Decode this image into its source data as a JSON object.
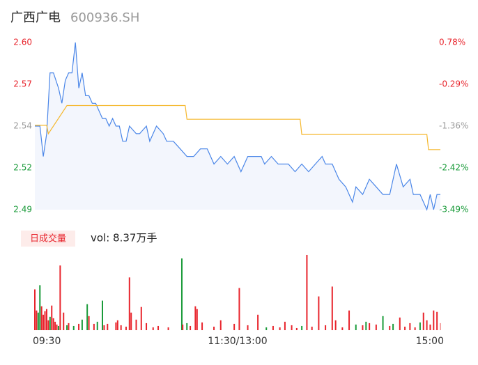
{
  "chart_data": {
    "type": "line",
    "title": "广西广电",
    "subtitle": "600936.SH",
    "xlim": [
      0,
      240
    ],
    "xticks": [
      {
        "value": 0,
        "label": "09:30"
      },
      {
        "value": 120,
        "label": "11:30/13:00"
      },
      {
        "value": 240,
        "label": "15:00"
      }
    ],
    "ylim": [
      2.49,
      2.6
    ],
    "yticks": [
      {
        "value": 2.6,
        "label": "2.60",
        "color": "#e8242c"
      },
      {
        "value": 2.5725,
        "label": "2.57",
        "color": "#e8242c"
      },
      {
        "value": 2.545,
        "label": "2.54",
        "color": "#999999"
      },
      {
        "value": 2.5175,
        "label": "2.52",
        "color": "#1a9b3a"
      },
      {
        "value": 2.49,
        "label": "2.49",
        "color": "#1a9b3a"
      }
    ],
    "y2lim": [
      -3.49,
      0.78
    ],
    "y2ticks": [
      {
        "value": 0.78,
        "label": "0.78%",
        "color": "#e8242c"
      },
      {
        "value": -0.2875,
        "label": "-0.29%",
        "color": "#e8242c"
      },
      {
        "value": -1.355,
        "label": "-1.36%",
        "color": "#999999"
      },
      {
        "value": -2.4225,
        "label": "-2.42%",
        "color": "#1a9b3a"
      },
      {
        "value": -3.49,
        "label": "-3.49%",
        "color": "#1a9b3a"
      }
    ],
    "series": [
      {
        "color": "#4a86e8",
        "x": [
          0,
          3,
          5,
          7,
          9,
          11,
          14,
          16,
          18,
          20,
          22,
          24,
          26,
          28,
          30,
          32,
          34,
          36,
          40,
          42,
          44,
          46,
          48,
          50,
          52,
          54,
          56,
          60,
          62,
          66,
          68,
          72,
          76,
          78,
          82,
          86,
          90,
          94,
          98,
          102,
          106,
          110,
          114,
          118,
          122,
          126,
          130,
          134,
          136,
          140,
          144,
          148,
          150,
          154,
          158,
          162,
          166,
          170,
          172,
          176,
          180,
          184,
          188,
          190,
          194,
          198,
          202,
          206,
          210,
          214,
          218,
          222,
          224,
          228,
          232,
          234,
          236,
          238,
          240
        ],
        "values": [
          2.545,
          2.545,
          2.525,
          2.54,
          2.58,
          2.58,
          2.57,
          2.56,
          2.575,
          2.58,
          2.58,
          2.6,
          2.57,
          2.58,
          2.565,
          2.565,
          2.56,
          2.56,
          2.55,
          2.55,
          2.545,
          2.55,
          2.545,
          2.545,
          2.535,
          2.535,
          2.545,
          2.54,
          2.54,
          2.545,
          2.535,
          2.545,
          2.54,
          2.535,
          2.535,
          2.53,
          2.525,
          2.525,
          2.53,
          2.53,
          2.52,
          2.525,
          2.52,
          2.525,
          2.515,
          2.525,
          2.525,
          2.525,
          2.52,
          2.525,
          2.52,
          2.52,
          2.52,
          2.515,
          2.52,
          2.515,
          2.52,
          2.525,
          2.52,
          2.52,
          2.51,
          2.505,
          2.495,
          2.505,
          2.5,
          2.51,
          2.505,
          2.5,
          2.5,
          2.52,
          2.505,
          2.51,
          2.5,
          2.5,
          2.49,
          2.5,
          2.49,
          2.5,
          2.5
        ]
      },
      {
        "color": "#f5b82e",
        "x": [
          0,
          7,
          8,
          19,
          20,
          89,
          90,
          157,
          158,
          232,
          233,
          240
        ],
        "values": [
          2.5455,
          2.5455,
          2.54,
          2.5585,
          2.5585,
          2.5585,
          2.5495,
          2.5495,
          2.5395,
          2.5395,
          2.5295,
          2.5295
        ]
      }
    ],
    "volume": {
      "button": "日成交量",
      "label": "vol: 8.37万手",
      "ylim": [
        0,
        105
      ],
      "x": [
        0,
        1,
        2,
        3,
        4,
        5,
        6,
        7,
        8,
        9,
        10,
        11,
        12,
        13,
        14,
        15,
        17,
        19,
        20,
        23,
        26,
        28,
        31,
        32,
        35,
        37,
        40,
        41,
        43,
        48,
        49,
        51,
        54,
        56,
        57,
        60,
        63,
        66,
        70,
        73,
        79,
        87,
        87.5,
        90,
        92,
        95,
        96,
        99,
        106,
        110,
        118,
        121,
        126,
        132,
        137,
        141,
        145,
        148,
        152,
        155,
        158,
        161,
        164,
        168,
        172,
        176,
        178,
        182,
        186,
        190,
        194,
        196,
        198,
        202,
        206,
        210,
        212,
        216,
        219,
        222,
        225,
        228,
        230,
        232,
        234,
        236,
        238,
        240
      ],
      "values": [
        58,
        28,
        25,
        64,
        34,
        22,
        27,
        30,
        14,
        19,
        35,
        17,
        12,
        8,
        6,
        92,
        25,
        7,
        10,
        6,
        9,
        15,
        37,
        20,
        9,
        12,
        42,
        7,
        9,
        11,
        14,
        7,
        5,
        75,
        25,
        15,
        33,
        10,
        4,
        6,
        4,
        102,
        8,
        10,
        6,
        34,
        30,
        11,
        5,
        14,
        9,
        60,
        7,
        22,
        4,
        6,
        4,
        12,
        7,
        3,
        6,
        107,
        5,
        48,
        7,
        62,
        14,
        4,
        28,
        8,
        7,
        12,
        10,
        8,
        20,
        6,
        9,
        18,
        5,
        10,
        4,
        11,
        25,
        14,
        8,
        28,
        26,
        10
      ],
      "colors": [
        "#e8242c",
        "#e8242c",
        "#1a9b3a",
        "#1a9b3a",
        "#e8242c",
        "#e8242c",
        "#e8242c",
        "#e8242c",
        "#e8242c",
        "#1a9b3a",
        "#e8242c",
        "#e8242c",
        "#e8242c",
        "#e8242c",
        "#1a9b3a",
        "#e8242c",
        "#e8242c",
        "#1a9b3a",
        "#e8242c",
        "#1a9b3a",
        "#e8242c",
        "#1a9b3a",
        "#1a9b3a",
        "#e8242c",
        "#e8242c",
        "#1a9b3a",
        "#1a9b3a",
        "#e8242c",
        "#e8242c",
        "#e8242c",
        "#e8242c",
        "#e8242c",
        "#e8242c",
        "#e8242c",
        "#e8242c",
        "#e8242c",
        "#e8242c",
        "#e8242c",
        "#e8242c",
        "#e8242c",
        "#e8242c",
        "#1a9b3a",
        "#e8242c",
        "#1a9b3a",
        "#e8242c",
        "#e8242c",
        "#e8242c",
        "#e8242c",
        "#e8242c",
        "#e8242c",
        "#e8242c",
        "#e8242c",
        "#e8242c",
        "#e8242c",
        "#1a9b3a",
        "#e8242c",
        "#e8242c",
        "#e8242c",
        "#e8242c",
        "#e8242c",
        "#1a9b3a",
        "#e8242c",
        "#e8242c",
        "#e8242c",
        "#e8242c",
        "#e8242c",
        "#e8242c",
        "#e8242c",
        "#e8242c",
        "#1a9b3a",
        "#e8242c",
        "#1a9b3a",
        "#e8242c",
        "#e8242c",
        "#1a9b3a",
        "#e8242c",
        "#1a9b3a",
        "#e8242c",
        "#e8242c",
        "#e8242c",
        "#e8242c",
        "#1a9b3a",
        "#e8242c",
        "#e8242c",
        "#e8242c",
        "#e8242c",
        "#e8242c",
        "#f5a5a5"
      ]
    }
  }
}
